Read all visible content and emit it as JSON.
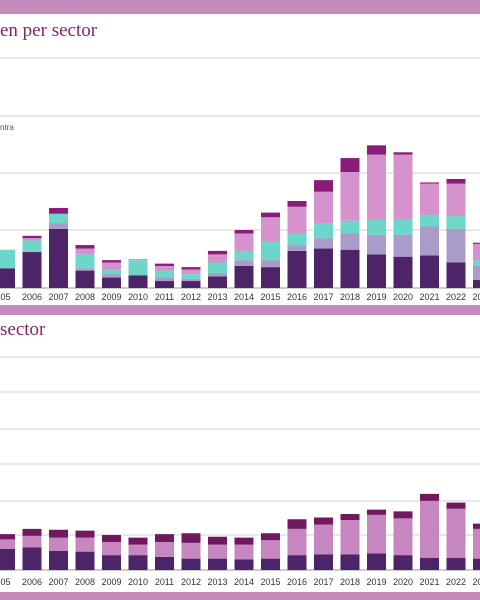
{
  "colors": {
    "band": "#c68bbd",
    "title": "#8a2070",
    "grid": "#d0d0d0",
    "tick": "#333333"
  },
  "chart_data": [
    {
      "type": "bar",
      "stacked": true,
      "title": "en per sector",
      "legend_fragment": "ntra",
      "categories": [
        "05",
        "2006",
        "2007",
        "2008",
        "2009",
        "2010",
        "2011",
        "2012",
        "2013",
        "2014",
        "2015",
        "2016",
        "2017",
        "2018",
        "2019",
        "2020",
        "2021",
        "2022",
        "2023",
        "2024",
        "2"
      ],
      "series": [
        {
          "color": "#4e2468",
          "values": [
            8.5,
            15.5,
            25.5,
            7.5,
            4.5,
            5.5,
            3.0,
            3.0,
            5.0,
            9.5,
            9.0,
            16.0,
            17.0,
            16.5,
            14.5,
            13.5,
            14.0,
            11.0,
            3.5,
            5.5,
            6.5
          ]
        },
        {
          "color": "#a99cc9",
          "values": [
            0,
            0,
            2.5,
            1.0,
            1.5,
            0,
            1.5,
            1.0,
            1.5,
            2.5,
            3.0,
            2.5,
            4.5,
            7.0,
            8.5,
            9.5,
            12.5,
            14.5,
            6.0,
            3.5,
            3.0
          ]
        },
        {
          "color": "#6cd6c8",
          "values": [
            8.0,
            5.0,
            4.0,
            6.0,
            2.0,
            6.5,
            3.0,
            2.0,
            4.5,
            4.0,
            8.0,
            5.0,
            6.5,
            5.5,
            6.5,
            6.5,
            5.0,
            5.5,
            2.5,
            3.5,
            4.0
          ]
        },
        {
          "color": "#d592cc",
          "values": [
            0,
            1.0,
            0,
            2.5,
            3.0,
            0.5,
            2.0,
            2.0,
            3.5,
            7.5,
            10.5,
            11.5,
            13.5,
            21.0,
            28.0,
            28.0,
            13.5,
            14.0,
            7.0,
            11.5,
            14.5
          ]
        },
        {
          "color": "#8a1d7a",
          "values": [
            0,
            1.0,
            2.5,
            1.5,
            1.0,
            0,
            1.0,
            1.0,
            1.5,
            1.5,
            2.0,
            2.5,
            5.0,
            6.0,
            4.0,
            1.0,
            0.5,
            2.0,
            0.5,
            0.5,
            0.5
          ]
        }
      ]
    },
    {
      "type": "bar",
      "stacked": true,
      "title": "sector",
      "categories": [
        "05",
        "2006",
        "2007",
        "2008",
        "2009",
        "2010",
        "2011",
        "2012",
        "2013",
        "2014",
        "2015",
        "2016",
        "2017",
        "2018",
        "2019",
        "2020",
        "2021",
        "2022",
        "2023",
        "2024",
        "2"
      ],
      "series": [
        {
          "color": "#4e2468",
          "values": [
            12.0,
            13.0,
            11.0,
            10.5,
            8.5,
            8.5,
            7.5,
            6.5,
            6.5,
            6.0,
            6.5,
            8.5,
            9.0,
            9.0,
            9.5,
            8.5,
            7.0,
            7.0,
            6.5,
            6.5,
            5.5
          ]
        },
        {
          "color": "#c687c0",
          "values": [
            5.5,
            6.5,
            7.5,
            8.0,
            7.5,
            6.0,
            8.5,
            9.0,
            8.0,
            8.5,
            10.5,
            15.0,
            17.0,
            19.5,
            22.0,
            21.0,
            32.5,
            28.0,
            17.0,
            18.5,
            18.0
          ]
        },
        {
          "color": "#71195e",
          "values": [
            3.0,
            4.0,
            4.5,
            4.0,
            4.0,
            4.0,
            4.5,
            5.5,
            4.5,
            4.0,
            4.0,
            5.5,
            4.0,
            3.5,
            3.0,
            4.0,
            4.0,
            3.5,
            3.0,
            3.0,
            3.0
          ]
        }
      ]
    }
  ]
}
